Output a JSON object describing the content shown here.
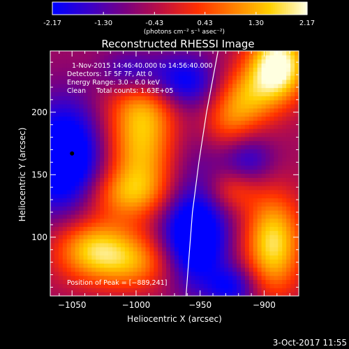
{
  "colorbar": {
    "tick_labels": [
      "-2.17",
      "-1.30",
      "-0.43",
      "0.43",
      "1.30",
      "2.17"
    ],
    "tick_values": [
      -2.17,
      -1.3,
      -0.43,
      0.43,
      1.3,
      2.17
    ],
    "range": [
      -2.17,
      2.17
    ],
    "units_label": "(photons cm⁻² s⁻¹ asec⁻²)",
    "colormap": [
      "#0000ff",
      "#3a00c8",
      "#7a0080",
      "#c01040",
      "#ff3000",
      "#ff8000",
      "#ffd000",
      "#ffffe0"
    ]
  },
  "chart_data": {
    "type": "heatmap",
    "title": "Reconstructed RHESSI Image",
    "xlabel": "Heliocentric X (arcsec)",
    "ylabel": "Heliocentric Y (arcsec)",
    "xlim": [
      -1067,
      -873
    ],
    "ylim": [
      53,
      249
    ],
    "x_ticks": [
      -1050,
      -1000,
      -950,
      -900
    ],
    "y_ticks": [
      100,
      150,
      200
    ],
    "x_tick_labels": [
      "−1050",
      "−1000",
      "−950",
      "−900"
    ],
    "y_tick_labels": [
      "100",
      "150",
      "200"
    ],
    "info_lines": [
      "1-Nov-2015 14:46:40.000 to 14:56:40.000",
      "Detectors: 1F 5F 7F, Att 0",
      "Energy Range: 3.0 - 6.0 keV",
      "Clean     Total counts: 1.63E+05"
    ],
    "peak_label": "Position of Peak = [−889,241]",
    "peak_position": [
      -889,
      241
    ],
    "marker_position": [
      -1050,
      167
    ],
    "limb_curve": [
      [
        -961,
        53
      ],
      [
        -959,
        80
      ],
      [
        -956,
        120
      ],
      [
        -951,
        160
      ],
      [
        -945,
        200
      ],
      [
        -936,
        249
      ]
    ],
    "value_range": [
      -2.17,
      2.17
    ],
    "grid": false,
    "blobs": [
      {
        "x": -995,
        "y": 170,
        "sx": 22,
        "sy": 32,
        "amp": 2.1
      },
      {
        "x": -992,
        "y": 208,
        "sx": 20,
        "sy": 18,
        "amp": 1.0
      },
      {
        "x": -1010,
        "y": 135,
        "sx": 26,
        "sy": 14,
        "amp": 1.2
      },
      {
        "x": -1035,
        "y": 92,
        "sx": 22,
        "sy": 18,
        "amp": 2.0
      },
      {
        "x": -1000,
        "y": 80,
        "sx": 25,
        "sy": 16,
        "amp": 1.5
      },
      {
        "x": -889,
        "y": 238,
        "sx": 16,
        "sy": 20,
        "amp": 3.0
      },
      {
        "x": -915,
        "y": 212,
        "sx": 18,
        "sy": 18,
        "amp": 1.6
      },
      {
        "x": -930,
        "y": 190,
        "sx": 15,
        "sy": 15,
        "amp": 0.9
      },
      {
        "x": -893,
        "y": 95,
        "sx": 16,
        "sy": 28,
        "amp": 2.4
      },
      {
        "x": -925,
        "y": 138,
        "sx": 14,
        "sy": 12,
        "amp": 1.0
      },
      {
        "x": -1055,
        "y": 162,
        "sx": 22,
        "sy": 32,
        "amp": -2.6
      },
      {
        "x": -1005,
        "y": 232,
        "sx": 16,
        "sy": 12,
        "amp": -1.2
      },
      {
        "x": -965,
        "y": 225,
        "sx": 20,
        "sy": 15,
        "amp": -1.7
      },
      {
        "x": -955,
        "y": 98,
        "sx": 18,
        "sy": 26,
        "amp": -2.5
      },
      {
        "x": -912,
        "y": 162,
        "sx": 14,
        "sy": 14,
        "amp": -1.1
      },
      {
        "x": -925,
        "y": 60,
        "sx": 14,
        "sy": 12,
        "amp": -1.4
      },
      {
        "x": -960,
        "y": 160,
        "sx": 20,
        "sy": 40,
        "amp": -0.7
      }
    ],
    "baseline": -0.6
  },
  "footer": {
    "timestamp": "3-Oct-2017 11:55"
  }
}
